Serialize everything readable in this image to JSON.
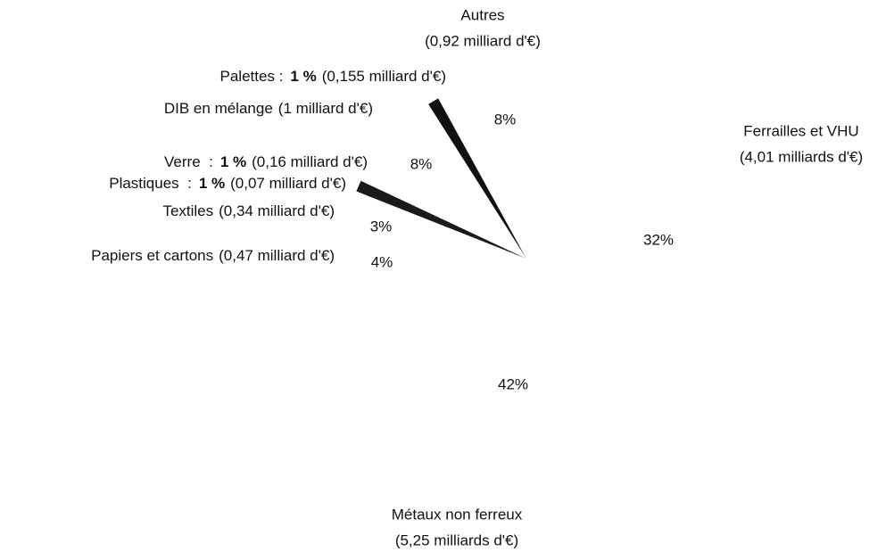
{
  "chart_data": {
    "type": "pie",
    "categories": [
      "Ferrailles et VHU",
      "Métaux non ferreux",
      "Papiers et cartons",
      "Textiles",
      "Plastiques  :",
      "Verre  :",
      "DIB en mélange",
      "Palettes :",
      "Autres"
    ],
    "details": [
      "(4,01 milliards d'€)",
      "(5,25 milliards d'€)",
      "(0,47 milliard d'€)",
      "(0,34 milliard d'€)",
      "(0,07 milliard d'€)",
      "(0,16 milliard d'€)",
      "(1 milliard d'€)",
      "(0,155 milliard d'€)",
      "(0,92 milliard d'€)"
    ],
    "values": [
      32,
      42,
      4,
      3,
      1,
      1,
      8,
      1,
      8
    ],
    "value_labels": [
      "32%",
      "42%",
      "4%",
      "3%",
      "1 %",
      "1 %",
      "8%",
      "1 %",
      "8%"
    ],
    "colors": [
      "#ffffff",
      "#ffffff",
      "#ffffff",
      "#ffffff",
      "#1a1a1a",
      "#ffffff",
      "#ffffff",
      "#111111",
      "#ffffff"
    ]
  }
}
